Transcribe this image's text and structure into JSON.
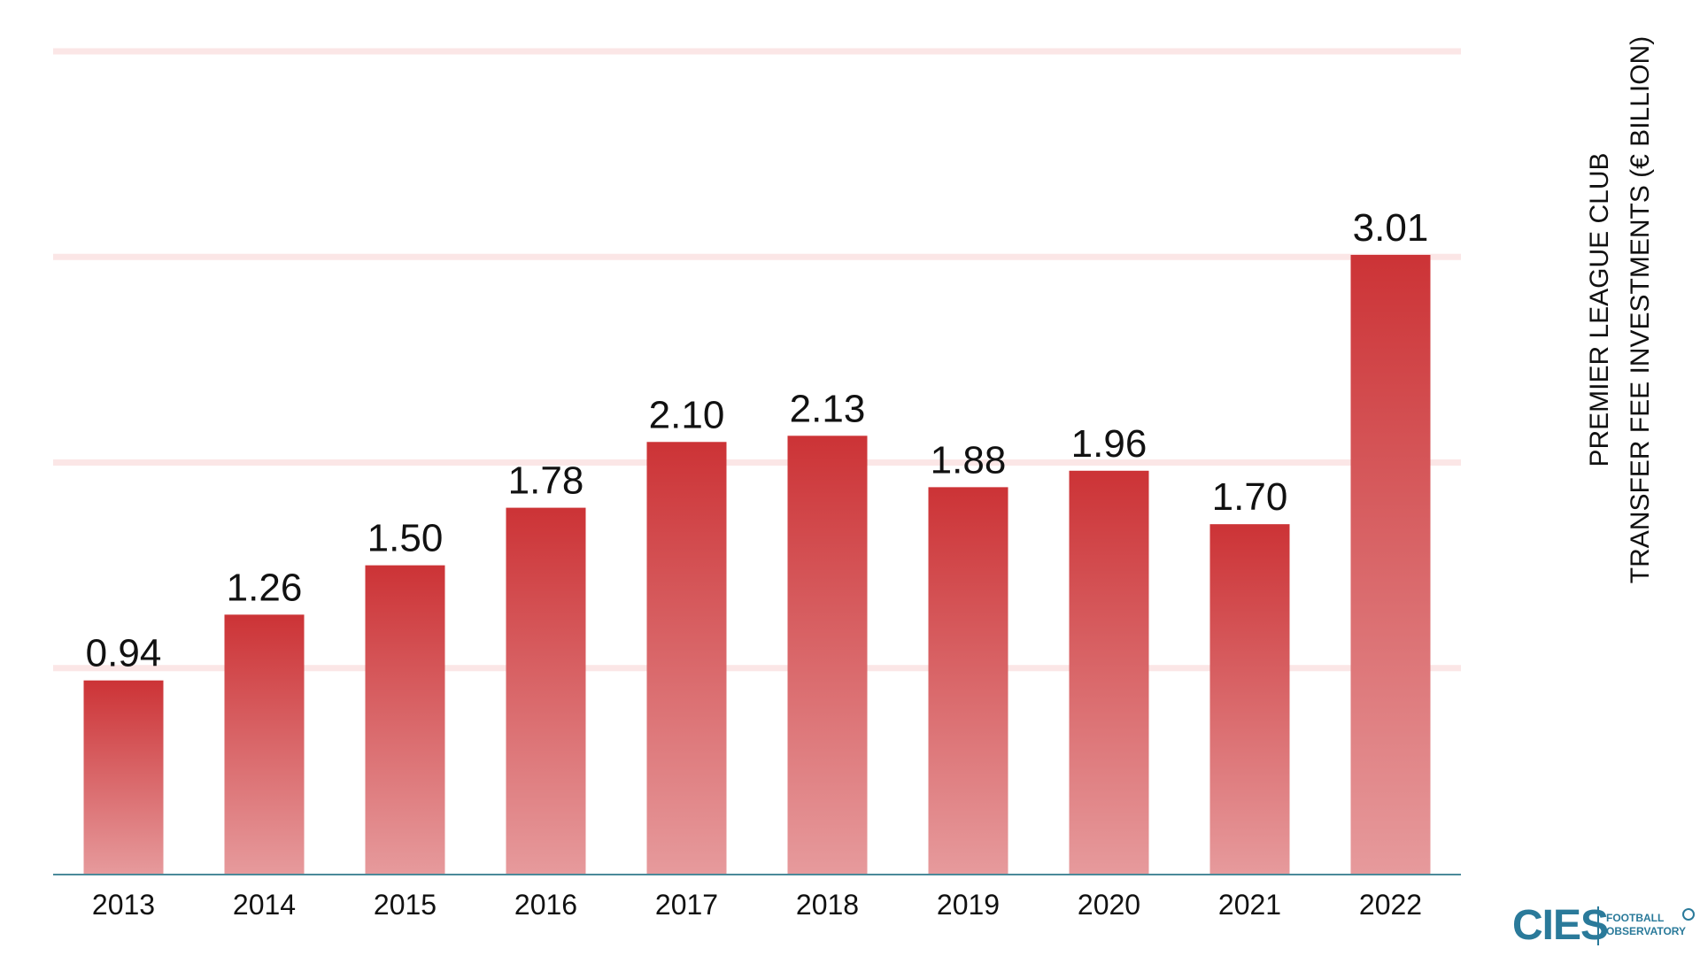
{
  "chart_data": {
    "type": "bar",
    "categories": [
      "2013",
      "2014",
      "2015",
      "2016",
      "2017",
      "2018",
      "2019",
      "2020",
      "2021",
      "2022"
    ],
    "values": [
      0.94,
      1.26,
      1.5,
      1.78,
      2.1,
      2.13,
      1.88,
      1.96,
      1.7,
      3.01
    ],
    "value_labels": [
      "0.94",
      "1.26",
      "1.50",
      "1.78",
      "2.10",
      "2.13",
      "1.88",
      "1.96",
      "1.70",
      "3.01"
    ],
    "ylabel_line1": "PREMIER LEAGUE CLUB",
    "ylabel_line2": "TRANSFER FEE INVESTMENTS (€ BILLION)",
    "ylim": [
      0,
      4
    ],
    "gridlines": [
      1,
      2,
      3,
      4
    ],
    "grid": true,
    "colors": {
      "bar_top": "#cc3336",
      "bar_bottom": "#e69a9c",
      "grid": "#fbe6e6",
      "baseline": "#4a8a9a"
    }
  },
  "logo": {
    "brand": "CIES",
    "line1": "FOOTBALL",
    "line2": "OBSERVATORY"
  }
}
